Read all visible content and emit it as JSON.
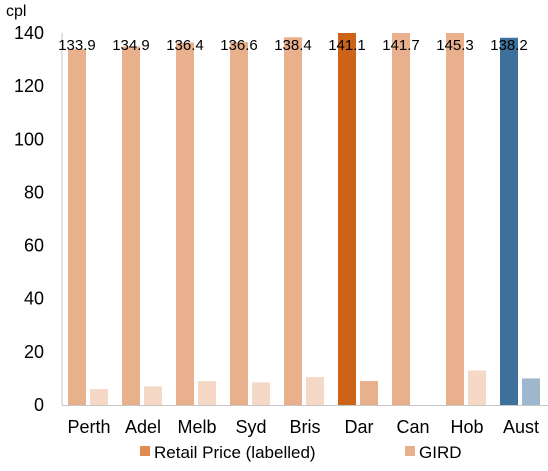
{
  "chart_data": {
    "type": "bar",
    "ylabel": "cpl",
    "ylim": [
      0,
      140
    ],
    "yticks": [
      0,
      20,
      40,
      60,
      80,
      100,
      120,
      140
    ],
    "grid": false,
    "legend_position": "bottom",
    "categories": [
      "Perth",
      "Adel",
      "Melb",
      "Syd",
      "Bris",
      "Dar",
      "Can",
      "Hob",
      "Aust"
    ],
    "series": [
      {
        "name": "Retail Price (labelled)",
        "values": [
          133.9,
          134.9,
          136.4,
          136.6,
          138.4,
          141.1,
          141.7,
          145.3,
          138.2
        ],
        "labels": [
          "133.9",
          "134.9",
          "136.4",
          "136.6",
          "138.4",
          "141.1",
          "141.7",
          "145.3",
          "138.2"
        ]
      },
      {
        "name": "GIRD",
        "values": [
          6,
          7,
          9,
          8.5,
          10.5,
          9,
          null,
          13,
          10
        ]
      }
    ],
    "colors": {
      "retail": "#e8b08d",
      "retail_highlight_dar": "#cd6317",
      "retail_highlight_aust": "#3f6f9b",
      "gird": "#f5d8c6",
      "gird_highlight_dar": "#e8b08d",
      "gird_highlight_aust": "#9fb7cd",
      "legend_retail": "#e08b50",
      "legend_gird": "#e8b08d"
    }
  }
}
